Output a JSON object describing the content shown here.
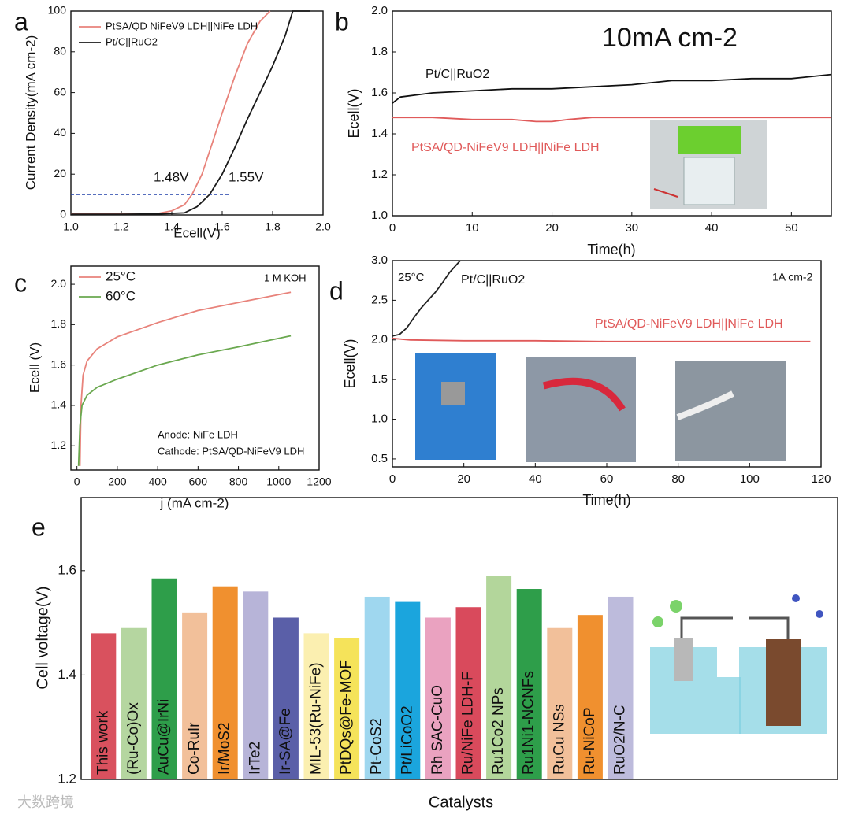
{
  "watermark": "大数跨境",
  "chart_data": [
    {
      "panel": "a",
      "type": "line",
      "xlabel": "Ecell(V)",
      "ylabel": "Current Density(mA cm-2)",
      "xlim": [
        1.0,
        2.0
      ],
      "ylim": [
        0,
        100
      ],
      "xticks": [
        {
          "value": 1.0,
          "label": "1.0"
        },
        1.2,
        1.4,
        1.6,
        1.8,
        {
          "value": 2.0,
          "label": "2.0"
        }
      ],
      "yticks": [
        0,
        20,
        40,
        60,
        80,
        100
      ],
      "legend": "upper left",
      "annotations": [
        "1.48V",
        "1.55V"
      ],
      "reference_line": {
        "y": 10,
        "x": [
          1.0,
          1.63
        ],
        "color": "#1f3fa8"
      },
      "series": [
        {
          "name": "PtSA/QD NiFeV9 LDH||NiFe LDH",
          "color": "#e8837b",
          "x": [
            1.0,
            1.2,
            1.35,
            1.4,
            1.45,
            1.48,
            1.52,
            1.56,
            1.6,
            1.65,
            1.7,
            1.75,
            1.79
          ],
          "values": [
            0.5,
            0.5,
            0.8,
            2,
            5,
            10,
            20,
            35,
            50,
            68,
            84,
            95,
            100
          ]
        },
        {
          "name": "Pt/C||RuO2",
          "color": "#1a1a1a",
          "x": [
            1.0,
            1.2,
            1.35,
            1.45,
            1.5,
            1.55,
            1.6,
            1.65,
            1.7,
            1.75,
            1.8,
            1.85,
            1.88,
            1.95
          ],
          "values": [
            0.3,
            0.3,
            0.5,
            1,
            4,
            10,
            20,
            33,
            47,
            60,
            73,
            88,
            100,
            100
          ]
        }
      ]
    },
    {
      "panel": "b",
      "type": "line",
      "xlabel": "Time(h)",
      "ylabel": "Ecell(V)",
      "xlim": [
        0,
        55
      ],
      "ylim": [
        1.0,
        2.0
      ],
      "xticks": [
        0,
        10,
        20,
        30,
        40,
        50
      ],
      "yticks": [
        {
          "value": 1.0,
          "label": "1.0"
        },
        1.2,
        1.4,
        1.6,
        1.8,
        {
          "value": 2.0,
          "label": "2.0"
        }
      ],
      "annotations": [
        "10mA cm-2"
      ],
      "series": [
        {
          "name": "Pt/C||RuO2",
          "color": "#111111",
          "x": [
            0,
            1,
            3,
            5,
            10,
            15,
            20,
            25,
            30,
            35,
            40,
            45,
            50,
            55
          ],
          "values": [
            1.55,
            1.58,
            1.59,
            1.6,
            1.61,
            1.62,
            1.62,
            1.63,
            1.64,
            1.66,
            1.66,
            1.67,
            1.67,
            1.69
          ]
        },
        {
          "name": "PtSA/QD-NiFeV9 LDH||NiFe LDH",
          "color": "#e05a5a",
          "x": [
            0,
            5,
            10,
            15,
            18,
            20,
            22,
            25,
            30,
            40,
            50,
            55
          ],
          "values": [
            1.48,
            1.48,
            1.47,
            1.47,
            1.46,
            1.46,
            1.47,
            1.48,
            1.48,
            1.48,
            1.48,
            1.48
          ]
        }
      ]
    },
    {
      "panel": "c",
      "type": "line",
      "xlabel": "j (mA cm-2)",
      "ylabel": "Ecell (V)",
      "xlim": [
        -30,
        1200
      ],
      "ylim": [
        1.08,
        2.09
      ],
      "xticks": [
        0,
        200,
        400,
        600,
        800,
        1000,
        1200
      ],
      "yticks": [
        {
          "value": 1.2,
          "label": "1.2"
        },
        {
          "value": 1.4,
          "label": "1.4"
        },
        {
          "value": 1.6,
          "label": "1.6"
        },
        {
          "value": 1.8,
          "label": "1.8"
        },
        {
          "value": 2.0,
          "label": "2.0"
        }
      ],
      "legend": "upper left",
      "annotations": [
        "1 M KOH",
        "Anode: NiFe LDH",
        "Cathode: PtSA/QD-NiFeV9 LDH"
      ],
      "series": [
        {
          "name": "25°C",
          "color": "#e8837b",
          "x": [
            15,
            20,
            30,
            50,
            100,
            200,
            400,
            600,
            800,
            1060
          ],
          "values": [
            1.1,
            1.4,
            1.55,
            1.62,
            1.68,
            1.74,
            1.81,
            1.87,
            1.91,
            1.96
          ]
        },
        {
          "name": "60°C",
          "color": "#6aa84f",
          "x": [
            8,
            15,
            25,
            50,
            100,
            200,
            400,
            600,
            800,
            1060
          ],
          "values": [
            1.1,
            1.3,
            1.4,
            1.45,
            1.49,
            1.53,
            1.6,
            1.65,
            1.69,
            1.745
          ]
        }
      ]
    },
    {
      "panel": "d",
      "type": "line",
      "xlabel": "Time(h)",
      "ylabel": "Ecell(V)",
      "xlim": [
        0,
        120
      ],
      "ylim": [
        0.4,
        3.0
      ],
      "xticks": [
        0,
        20,
        40,
        60,
        80,
        100,
        120
      ],
      "yticks": [
        0.5,
        {
          "value": 1.0,
          "label": "1.0"
        },
        1.5,
        {
          "value": 2.0,
          "label": "2.0"
        },
        2.5,
        {
          "value": 3.0,
          "label": "3.0"
        }
      ],
      "annotations": [
        "25°C",
        "1A cm-2"
      ],
      "series": [
        {
          "name": "Pt/C||RuO2",
          "color": "#222222",
          "x": [
            0,
            2,
            4,
            6,
            8,
            10,
            12,
            14,
            16,
            18,
            19
          ],
          "values": [
            2.05,
            2.07,
            2.15,
            2.28,
            2.4,
            2.5,
            2.6,
            2.72,
            2.85,
            2.95,
            3.0
          ]
        },
        {
          "name": "PtSA/QD-NiFeV9 LDH||NiFe LDH",
          "color": "#e05a5a",
          "x": [
            0,
            5,
            20,
            40,
            60,
            80,
            100,
            117
          ],
          "values": [
            2.02,
            2.0,
            1.99,
            1.99,
            1.98,
            1.98,
            1.98,
            1.98
          ]
        }
      ]
    },
    {
      "panel": "e",
      "type": "bar",
      "xlabel": "Catalysts",
      "ylabel": "Cell voltage(V)",
      "ylim": [
        1.2,
        1.74
      ],
      "yticks": [
        1.2,
        1.4,
        1.6
      ],
      "categories": [
        "This work",
        "(Ru-Co)Ox",
        "AuCu@IrNi",
        "Co-RuIr",
        "Ir/MoS2",
        "IrTe2",
        "Ir-SA@Fe",
        "MIL-53(Ru-NiFe)",
        "PtDQs@Fe-MOF",
        "Pt-CoS2",
        "Pt/LiCoO2",
        "Rh SAC-CuO",
        "Ru/NiFe LDH-F",
        "Ru1Co2 NPs",
        "Ru1Ni1-NCNFs",
        "RuCu NSs",
        "Ru-NiCoP",
        "RuO2/N-C"
      ],
      "values": [
        1.48,
        1.49,
        1.585,
        1.52,
        1.57,
        1.56,
        1.51,
        1.48,
        1.47,
        1.55,
        1.54,
        1.51,
        1.53,
        1.59,
        1.565,
        1.49,
        1.515,
        1.55
      ],
      "colors": [
        "#d9515e",
        "#b5d6a0",
        "#2e9e4a",
        "#f2c09a",
        "#f0902f",
        "#b7b4d8",
        "#5a5fa8",
        "#fbefb0",
        "#f5e35a",
        "#9fd7ef",
        "#1ba5dd",
        "#eaa2c0",
        "#d94a5c",
        "#b3d69b",
        "#2e9e4a",
        "#f2c09a",
        "#f0902f",
        "#bdbbdc"
      ]
    }
  ]
}
